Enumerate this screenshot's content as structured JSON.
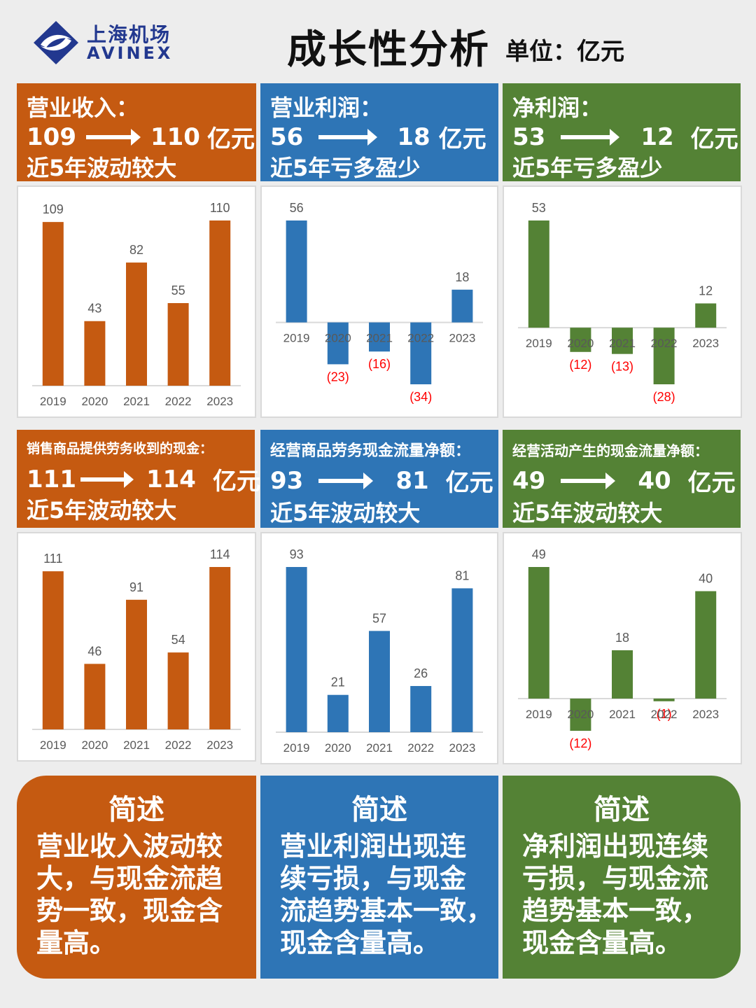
{
  "brand": {
    "name_cn": "上海机场",
    "name_en": "AVINEX",
    "color": "#22388f"
  },
  "title": "成长性分析",
  "unit": "单位：亿元",
  "colors": {
    "orange": "#c55a11",
    "blue": "#2e75b6",
    "green": "#548235",
    "negative": "#ff0000"
  },
  "panels": [
    {
      "id": "revenue",
      "label": "营业收入：",
      "from": "109",
      "to": "110",
      "unit": "亿元",
      "note": "近5年波动较大"
    },
    {
      "id": "op-profit",
      "label": "营业利润：",
      "from": "56",
      "to": "18",
      "unit": "亿元",
      "note": "近5年亏多盈少"
    },
    {
      "id": "net-profit",
      "label": "净利润：",
      "from": "53",
      "to": "12",
      "unit": "亿元",
      "note": "近5年亏多盈少"
    },
    {
      "id": "sales-cash",
      "label": "销售商品提供劳务收到的现金：",
      "from": "111",
      "to": "114",
      "unit": "亿元",
      "note": "近5年波动较大"
    },
    {
      "id": "op-cashflow",
      "label": "经营商品劳务现金流量净额：",
      "from": "93",
      "to": "81",
      "unit": "亿元",
      "note": "近5年波动较大"
    },
    {
      "id": "act-cashflow",
      "label": "经营活动产生的现金流量净额：",
      "from": "49",
      "to": "40",
      "unit": "亿元",
      "note": "近5年波动较大"
    }
  ],
  "chart_data": [
    {
      "type": "bar",
      "categories": [
        "2019",
        "2020",
        "2021",
        "2022",
        "2023"
      ],
      "values": [
        109,
        43,
        82,
        55,
        110
      ],
      "labels": [
        "109",
        "43",
        "82",
        "55",
        "110"
      ],
      "ylim": [
        0,
        110
      ],
      "color": "orange"
    },
    {
      "type": "bar",
      "categories": [
        "2019",
        "2020",
        "2021",
        "2022",
        "2023"
      ],
      "values": [
        56,
        -23,
        -16,
        -34,
        18
      ],
      "labels": [
        "56",
        "(23)",
        "(16)",
        "(34)",
        "18"
      ],
      "ylim": [
        -34,
        56
      ],
      "color": "blue"
    },
    {
      "type": "bar",
      "categories": [
        "2019",
        "2020",
        "2021",
        "2022",
        "2023"
      ],
      "values": [
        53,
        -12,
        -13,
        -28,
        12
      ],
      "labels": [
        "53",
        "(12)",
        "(13)",
        "(28)",
        "12"
      ],
      "ylim": [
        -28,
        53
      ],
      "color": "green"
    },
    {
      "type": "bar",
      "categories": [
        "2019",
        "2020",
        "2021",
        "2022",
        "2023"
      ],
      "values": [
        111,
        46,
        91,
        54,
        114
      ],
      "labels": [
        "111",
        "46",
        "91",
        "54",
        "114"
      ],
      "ylim": [
        0,
        114
      ],
      "color": "orange"
    },
    {
      "type": "bar",
      "categories": [
        "2019",
        "2020",
        "2021",
        "2022",
        "2023"
      ],
      "values": [
        93,
        21,
        57,
        26,
        81
      ],
      "labels": [
        "93",
        "21",
        "57",
        "26",
        "81"
      ],
      "ylim": [
        0,
        93
      ],
      "color": "blue"
    },
    {
      "type": "bar",
      "categories": [
        "2019",
        "2020",
        "2021",
        "2022",
        "2023"
      ],
      "values": [
        49,
        -12,
        18,
        -1,
        40
      ],
      "labels": [
        "49",
        "(12)",
        "18",
        "(1)",
        "40"
      ],
      "ylim": [
        -12,
        49
      ],
      "color": "green"
    }
  ],
  "summaries": [
    {
      "heading": "简述",
      "lines": [
        "营业收入波动较",
        "大，与现金流趋",
        "势一致，现金含",
        "量高。"
      ]
    },
    {
      "heading": "简述",
      "lines": [
        "营业利润出现连",
        "续亏损，与现金",
        "流趋势基本一致，",
        "现金含量高。"
      ]
    },
    {
      "heading": "简述",
      "lines": [
        "净利润出现连续",
        "亏损，与现金流",
        "趋势基本一致，",
        "现金含量高。"
      ]
    }
  ]
}
